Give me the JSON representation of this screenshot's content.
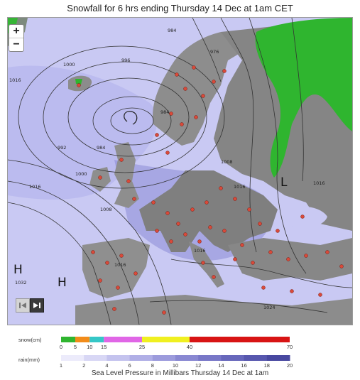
{
  "title": "Snowfall for 6 hrs ending Thursday 14 Dec at 1am CET",
  "footer": "Sea Level Pressure in Millibars Thursday 14 Dec at 1am",
  "zoom": {
    "in": "+",
    "out": "−"
  },
  "pressure_centers": [
    {
      "id": "h1",
      "label": "H"
    },
    {
      "id": "h2",
      "label": "H"
    },
    {
      "id": "l1",
      "label": "L"
    }
  ],
  "isobar_labels": [
    "984",
    "976",
    "1000",
    "996",
    "984",
    "992",
    "984",
    "1008",
    "1000",
    "1016",
    "1008",
    "1016",
    "1016",
    "1016",
    "1024",
    "1032",
    "1016",
    "1016"
  ],
  "legend": {
    "snow_label": "snow(cm)",
    "rain_label": "rain(mm)",
    "snow_ticks": [
      "0",
      "5",
      "10",
      "15",
      "25",
      "40",
      "70"
    ],
    "rain_ticks": [
      "1",
      "2",
      "4",
      "6",
      "8",
      "10",
      "12",
      "14",
      "16",
      "18",
      "20"
    ],
    "snow_colors": [
      "#2fb52f",
      "#f28c1a",
      "#35c7c7",
      "#e066e6",
      "#f0f020",
      "#d81414"
    ],
    "rain_colors": [
      "#ecebfb",
      "#d8d7f5",
      "#c4c3ee",
      "#b0afe6",
      "#9c9bdc",
      "#8988d2",
      "#7877c7",
      "#6767bb",
      "#5757ae",
      "#4848a0"
    ]
  }
}
